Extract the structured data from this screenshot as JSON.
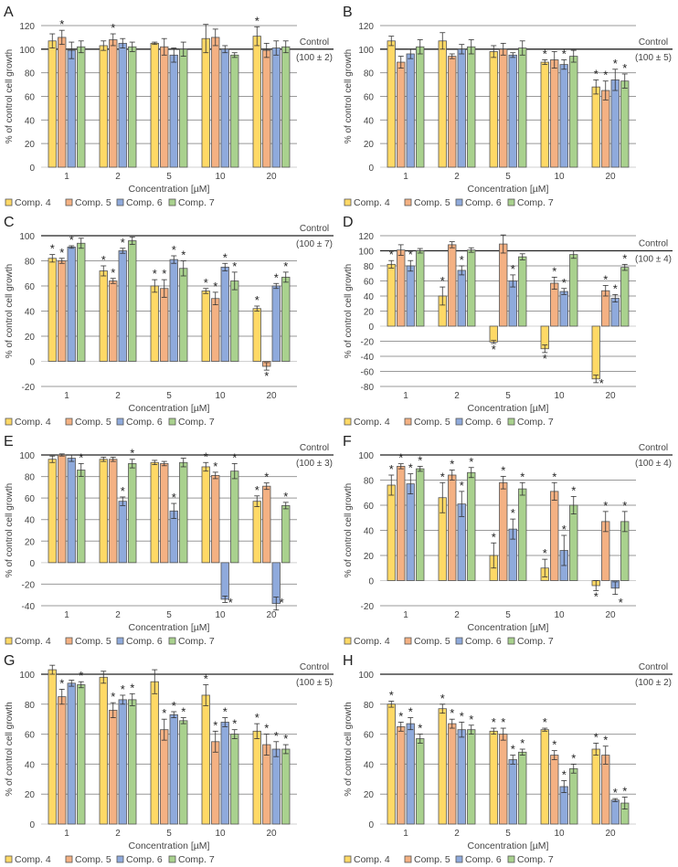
{
  "chart_data": [
    {
      "type": "bar",
      "panel": "A",
      "ylim": [
        0,
        120
      ],
      "yticks": [
        0,
        20,
        40,
        60,
        80,
        100,
        120
      ],
      "control_label": "Control",
      "control_value": "(100 ± 2)",
      "series": [
        {
          "name": "Comp. 4",
          "values": [
            107,
            103,
            105,
            109,
            111
          ],
          "errors": [
            6,
            4,
            1,
            12,
            8
          ],
          "significant": [
            0,
            0,
            0,
            0,
            1
          ]
        },
        {
          "name": "Comp. 5",
          "values": [
            110,
            108,
            102,
            110,
            99
          ],
          "errors": [
            6,
            5,
            7,
            7,
            6
          ],
          "significant": [
            1,
            1,
            0,
            0,
            0
          ]
        },
        {
          "name": "Comp. 6",
          "values": [
            99,
            105,
            95,
            100,
            101
          ],
          "errors": [
            7,
            4,
            6,
            3,
            6
          ],
          "significant": [
            0,
            0,
            0,
            0,
            0
          ]
        },
        {
          "name": "Comp. 7",
          "values": [
            102,
            102,
            100,
            95,
            102
          ],
          "errors": [
            5,
            4,
            6,
            2,
            5
          ],
          "significant": [
            0,
            0,
            0,
            0,
            0
          ]
        }
      ]
    },
    {
      "type": "bar",
      "panel": "B",
      "ylim": [
        0,
        120
      ],
      "yticks": [
        0,
        20,
        40,
        60,
        80,
        100,
        120
      ],
      "control_label": "Control",
      "control_value": "(100 ± 5)",
      "series": [
        {
          "name": "Comp. 4",
          "values": [
            107,
            107,
            98,
            89,
            68
          ],
          "errors": [
            4,
            7,
            5,
            2,
            6
          ],
          "significant": [
            0,
            0,
            0,
            1,
            1
          ]
        },
        {
          "name": "Comp. 5",
          "values": [
            89,
            94,
            100,
            91,
            65
          ],
          "errors": [
            5,
            2,
            5,
            7,
            8
          ],
          "significant": [
            0,
            0,
            0,
            0,
            1
          ]
        },
        {
          "name": "Comp. 6",
          "values": [
            96,
            100,
            95,
            87,
            74
          ],
          "errors": [
            4,
            4,
            2,
            4,
            9
          ],
          "significant": [
            0,
            0,
            0,
            1,
            1
          ]
        },
        {
          "name": "Comp. 7",
          "values": [
            102,
            102,
            101,
            94,
            73
          ],
          "errors": [
            6,
            6,
            6,
            5,
            6
          ],
          "significant": [
            0,
            0,
            0,
            0,
            1
          ]
        }
      ]
    },
    {
      "type": "bar",
      "panel": "C",
      "ylim": [
        -20,
        100
      ],
      "yticks": [
        -20,
        0,
        20,
        40,
        60,
        80,
        100
      ],
      "control_label": "Control",
      "control_value": "(100 ± 7)",
      "series": [
        {
          "name": "Comp. 4",
          "values": [
            82,
            72,
            60,
            56,
            42
          ],
          "errors": [
            3,
            4,
            5,
            2,
            2
          ],
          "significant": [
            1,
            1,
            1,
            1,
            1
          ]
        },
        {
          "name": "Comp. 5",
          "values": [
            80,
            64,
            58,
            50,
            -4
          ],
          "errors": [
            2,
            2,
            7,
            5,
            3
          ],
          "significant": [
            1,
            1,
            1,
            1,
            1
          ]
        },
        {
          "name": "Comp. 6",
          "values": [
            91,
            88,
            81,
            75,
            60
          ],
          "errors": [
            1,
            2,
            3,
            3,
            2
          ],
          "significant": [
            1,
            1,
            1,
            1,
            1
          ]
        },
        {
          "name": "Comp. 7",
          "values": [
            94,
            96,
            74,
            64,
            67
          ],
          "errors": [
            4,
            3,
            6,
            7,
            4
          ],
          "significant": [
            0,
            0,
            1,
            1,
            1
          ]
        }
      ]
    },
    {
      "type": "bar",
      "panel": "D",
      "ylim": [
        -80,
        120
      ],
      "yticks": [
        -80,
        -60,
        -40,
        -20,
        0,
        20,
        40,
        60,
        80,
        100,
        120
      ],
      "control_label": "Control",
      "control_value": "(100 ± 4)",
      "series": [
        {
          "name": "Comp. 4",
          "values": [
            82,
            40,
            -21,
            -30,
            -70
          ],
          "errors": [
            5,
            12,
            2,
            5,
            5
          ],
          "significant": [
            1,
            1,
            1,
            1,
            1
          ]
        },
        {
          "name": "Comp. 5",
          "values": [
            101,
            108,
            109,
            57,
            47
          ],
          "errors": [
            7,
            4,
            12,
            8,
            7
          ],
          "significant": [
            0,
            0,
            0,
            1,
            1
          ]
        },
        {
          "name": "Comp. 6",
          "values": [
            80,
            74,
            60,
            46,
            37
          ],
          "errors": [
            7,
            6,
            8,
            4,
            5
          ],
          "significant": [
            1,
            1,
            1,
            1,
            1
          ]
        },
        {
          "name": "Comp. 7",
          "values": [
            100,
            101,
            92,
            95,
            78
          ],
          "errors": [
            3,
            3,
            4,
            5,
            4
          ],
          "significant": [
            0,
            0,
            0,
            0,
            1
          ]
        }
      ]
    },
    {
      "type": "bar",
      "panel": "E",
      "ylim": [
        -40,
        100
      ],
      "yticks": [
        -40,
        -20,
        0,
        20,
        40,
        60,
        80,
        100
      ],
      "control_label": "Control",
      "control_value": "(100 ± 3)",
      "series": [
        {
          "name": "Comp. 4",
          "values": [
            96,
            96,
            93,
            89,
            57
          ],
          "errors": [
            3,
            2,
            2,
            4,
            5
          ],
          "significant": [
            0,
            0,
            0,
            1,
            1
          ]
        },
        {
          "name": "Comp. 5",
          "values": [
            100,
            96,
            92,
            81,
            71
          ],
          "errors": [
            1,
            2,
            2,
            3,
            3
          ],
          "significant": [
            0,
            0,
            0,
            1,
            1
          ]
        },
        {
          "name": "Comp. 6",
          "values": [
            97,
            57,
            48,
            -34,
            -38
          ],
          "errors": [
            3,
            4,
            7,
            3,
            6
          ],
          "significant": [
            0,
            1,
            1,
            1,
            1
          ]
        },
        {
          "name": "Comp. 7",
          "values": [
            86,
            92,
            93,
            85,
            53
          ],
          "errors": [
            6,
            4,
            4,
            7,
            3
          ],
          "significant": [
            1,
            1,
            0,
            1,
            1
          ]
        }
      ]
    },
    {
      "type": "bar",
      "panel": "F",
      "ylim": [
        -20,
        100
      ],
      "yticks": [
        -20,
        0,
        20,
        40,
        60,
        80,
        100
      ],
      "control_label": "Control",
      "control_value": "(100 ± 4)",
      "series": [
        {
          "name": "Comp. 4",
          "values": [
            76,
            66,
            20,
            10,
            -4
          ],
          "errors": [
            8,
            12,
            10,
            7,
            4
          ],
          "significant": [
            1,
            1,
            1,
            1,
            1
          ]
        },
        {
          "name": "Comp. 5",
          "values": [
            91,
            84,
            78,
            71,
            47
          ],
          "errors": [
            2,
            4,
            5,
            7,
            8
          ],
          "significant": [
            1,
            1,
            1,
            1,
            1
          ]
        },
        {
          "name": "Comp. 6",
          "values": [
            77,
            61,
            41,
            24,
            -6
          ],
          "errors": [
            8,
            10,
            8,
            12,
            5
          ],
          "significant": [
            1,
            1,
            1,
            1,
            1
          ]
        },
        {
          "name": "Comp. 7",
          "values": [
            89,
            86,
            73,
            60,
            47
          ],
          "errors": [
            2,
            4,
            5,
            7,
            8
          ],
          "significant": [
            1,
            1,
            1,
            1,
            1
          ]
        }
      ]
    },
    {
      "type": "bar",
      "panel": "G",
      "ylim": [
        0,
        100
      ],
      "yticks": [
        0,
        20,
        40,
        60,
        80,
        100
      ],
      "control_label": "Control",
      "control_value": "(100 ± 5)",
      "series": [
        {
          "name": "Comp. 4",
          "values": [
            103,
            98,
            95,
            86,
            62
          ],
          "errors": [
            3,
            4,
            8,
            7,
            5
          ],
          "significant": [
            0,
            0,
            0,
            1,
            1
          ]
        },
        {
          "name": "Comp. 5",
          "values": [
            85,
            76,
            63,
            55,
            53
          ],
          "errors": [
            5,
            5,
            7,
            7,
            7
          ],
          "significant": [
            1,
            1,
            1,
            1,
            1
          ]
        },
        {
          "name": "Comp. 6",
          "values": [
            94,
            83,
            73,
            68,
            50
          ],
          "errors": [
            2,
            3,
            2,
            3,
            5
          ],
          "significant": [
            0,
            1,
            1,
            1,
            1
          ]
        },
        {
          "name": "Comp. 7",
          "values": [
            93,
            83,
            69,
            60,
            50
          ],
          "errors": [
            2,
            4,
            2,
            3,
            3
          ],
          "significant": [
            1,
            1,
            1,
            1,
            1
          ]
        }
      ]
    },
    {
      "type": "bar",
      "panel": "H",
      "ylim": [
        0,
        100
      ],
      "yticks": [
        0,
        20,
        40,
        60,
        80,
        100
      ],
      "control_label": "Control",
      "control_value": "(100 ± 2)",
      "series": [
        {
          "name": "Comp. 4",
          "values": [
            80,
            77,
            62,
            63,
            50
          ],
          "errors": [
            2,
            3,
            2,
            1,
            4
          ],
          "significant": [
            1,
            1,
            1,
            1,
            1
          ]
        },
        {
          "name": "Comp. 5",
          "values": [
            65,
            67,
            60,
            46,
            46
          ],
          "errors": [
            3,
            3,
            4,
            3,
            6
          ],
          "significant": [
            1,
            1,
            1,
            1,
            1
          ]
        },
        {
          "name": "Comp. 6",
          "values": [
            67,
            63,
            43,
            25,
            16
          ],
          "errors": [
            4,
            5,
            3,
            4,
            1
          ],
          "significant": [
            1,
            1,
            1,
            1,
            1
          ]
        },
        {
          "name": "Comp. 7",
          "values": [
            57,
            63,
            48,
            37,
            14
          ],
          "errors": [
            3,
            3,
            2,
            3,
            4
          ],
          "significant": [
            1,
            1,
            1,
            1,
            1
          ]
        }
      ]
    }
  ],
  "shared": {
    "categories": [
      "1",
      "2",
      "5",
      "10",
      "20"
    ],
    "xlabel": "Concentration [µM]",
    "ylabel": "% of control cell growth",
    "significance_marker": "*",
    "colors": [
      "#FFD966",
      "#F4B183",
      "#8FAADC",
      "#A9D18E"
    ]
  }
}
